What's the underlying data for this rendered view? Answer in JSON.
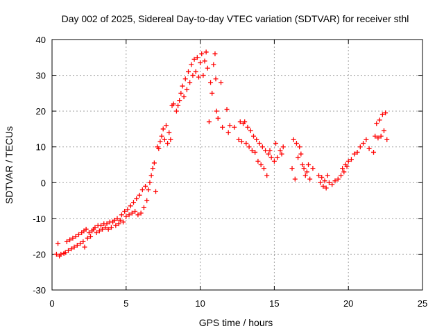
{
  "chart_data": {
    "type": "scatter",
    "title": "Day 002 of 2025, Sidereal Day-to-day VTEC variation (SDTVAR) for receiver sthl",
    "xlabel": "GPS time / hours",
    "ylabel": "SDTVAR / TECUs",
    "xlim": [
      0,
      25
    ],
    "ylim": [
      -30,
      40
    ],
    "xticks": [
      0,
      5,
      10,
      15,
      20,
      25
    ],
    "yticks": [
      -30,
      -20,
      -10,
      0,
      10,
      20,
      30,
      40
    ],
    "grid": true,
    "marker": "+",
    "color": "#ff0000",
    "series": [
      {
        "name": "SDTVAR",
        "points": [
          [
            0.3,
            -20
          ],
          [
            0.4,
            -17
          ],
          [
            0.5,
            -20.5
          ],
          [
            0.6,
            -20
          ],
          [
            0.8,
            -19.8
          ],
          [
            0.9,
            -19.5
          ],
          [
            1.0,
            -16.5
          ],
          [
            1.1,
            -19
          ],
          [
            1.2,
            -16
          ],
          [
            1.3,
            -18.5
          ],
          [
            1.4,
            -15.5
          ],
          [
            1.5,
            -18
          ],
          [
            1.6,
            -15
          ],
          [
            1.7,
            -17.5
          ],
          [
            1.8,
            -14.5
          ],
          [
            1.9,
            -17
          ],
          [
            2.0,
            -14
          ],
          [
            2.1,
            -16.5
          ],
          [
            2.15,
            -13.5
          ],
          [
            2.2,
            -18
          ],
          [
            2.3,
            -13
          ],
          [
            2.4,
            -15.5
          ],
          [
            2.5,
            -14
          ],
          [
            2.6,
            -15
          ],
          [
            2.7,
            -13.5
          ],
          [
            2.8,
            -13
          ],
          [
            2.9,
            -12.5
          ],
          [
            3.0,
            -14
          ],
          [
            3.1,
            -12
          ],
          [
            3.2,
            -13.5
          ],
          [
            3.3,
            -12
          ],
          [
            3.4,
            -13
          ],
          [
            3.5,
            -11.5
          ],
          [
            3.6,
            -12.5
          ],
          [
            3.7,
            -11.5
          ],
          [
            3.8,
            -13
          ],
          [
            3.9,
            -11
          ],
          [
            4.0,
            -12.5
          ],
          [
            4.1,
            -11
          ],
          [
            4.2,
            -10.5
          ],
          [
            4.3,
            -12
          ],
          [
            4.4,
            -10
          ],
          [
            4.5,
            -11.5
          ],
          [
            4.6,
            -10.5
          ],
          [
            4.7,
            -9
          ],
          [
            4.8,
            -11
          ],
          [
            4.9,
            -8
          ],
          [
            5.0,
            -9.5
          ],
          [
            5.1,
            -7.5
          ],
          [
            5.2,
            -9
          ],
          [
            5.3,
            -6.5
          ],
          [
            5.4,
            -8.5
          ],
          [
            5.5,
            -5.5
          ],
          [
            5.6,
            -8
          ],
          [
            5.7,
            -4.5
          ],
          [
            5.8,
            -9
          ],
          [
            5.9,
            -3.5
          ],
          [
            6.0,
            -8.5
          ],
          [
            6.1,
            -2
          ],
          [
            6.2,
            -7
          ],
          [
            6.3,
            -1
          ],
          [
            6.4,
            -5
          ],
          [
            6.5,
            -2
          ],
          [
            6.6,
            0
          ],
          [
            6.7,
            2
          ],
          [
            6.8,
            4
          ],
          [
            6.9,
            5.5
          ],
          [
            7.0,
            -2.5
          ],
          [
            7.1,
            10
          ],
          [
            7.2,
            9.5
          ],
          [
            7.3,
            11.5
          ],
          [
            7.4,
            13
          ],
          [
            7.5,
            15
          ],
          [
            7.6,
            12
          ],
          [
            7.7,
            16
          ],
          [
            7.8,
            11
          ],
          [
            7.9,
            14
          ],
          [
            8.0,
            12
          ],
          [
            8.1,
            21.5
          ],
          [
            8.2,
            22
          ],
          [
            8.4,
            20
          ],
          [
            8.5,
            21.5
          ],
          [
            8.6,
            23
          ],
          [
            8.7,
            25
          ],
          [
            8.8,
            27
          ],
          [
            8.9,
            24
          ],
          [
            9.0,
            29
          ],
          [
            9.1,
            26
          ],
          [
            9.2,
            31
          ],
          [
            9.3,
            28
          ],
          [
            9.4,
            33
          ],
          [
            9.5,
            30
          ],
          [
            9.6,
            34.5
          ],
          [
            9.7,
            31
          ],
          [
            9.8,
            35
          ],
          [
            9.9,
            29.5
          ],
          [
            10.0,
            33.5
          ],
          [
            10.1,
            36
          ],
          [
            10.2,
            30
          ],
          [
            10.3,
            34
          ],
          [
            10.4,
            36.5
          ],
          [
            10.5,
            32
          ],
          [
            10.6,
            17
          ],
          [
            10.7,
            28
          ],
          [
            10.8,
            25
          ],
          [
            10.9,
            33
          ],
          [
            11.0,
            36
          ],
          [
            11.05,
            29
          ],
          [
            11.1,
            20
          ],
          [
            11.2,
            18
          ],
          [
            11.4,
            28
          ],
          [
            11.5,
            15.5
          ],
          [
            11.8,
            20.5
          ],
          [
            11.9,
            14
          ],
          [
            12.0,
            16
          ],
          [
            12.3,
            15.5
          ],
          [
            12.6,
            12
          ],
          [
            12.7,
            17
          ],
          [
            12.8,
            11.5
          ],
          [
            12.9,
            16.5
          ],
          [
            13.0,
            17
          ],
          [
            13.1,
            11
          ],
          [
            13.2,
            15.5
          ],
          [
            13.3,
            10
          ],
          [
            13.4,
            14.5
          ],
          [
            13.5,
            9
          ],
          [
            13.6,
            13
          ],
          [
            13.7,
            8.5
          ],
          [
            13.8,
            12
          ],
          [
            13.9,
            6
          ],
          [
            14.0,
            11
          ],
          [
            14.1,
            5
          ],
          [
            14.2,
            10
          ],
          [
            14.3,
            4
          ],
          [
            14.4,
            9
          ],
          [
            14.5,
            2
          ],
          [
            14.6,
            8
          ],
          [
            14.7,
            9
          ],
          [
            14.8,
            7
          ],
          [
            15.0,
            6
          ],
          [
            15.1,
            11
          ],
          [
            15.2,
            7
          ],
          [
            15.4,
            9
          ],
          [
            15.5,
            8
          ],
          [
            15.6,
            10
          ],
          [
            16.2,
            4
          ],
          [
            16.3,
            12
          ],
          [
            16.4,
            1
          ],
          [
            16.5,
            11
          ],
          [
            16.6,
            7
          ],
          [
            16.7,
            10
          ],
          [
            16.8,
            8
          ],
          [
            16.9,
            5
          ],
          [
            17.0,
            4
          ],
          [
            17.1,
            2
          ],
          [
            17.2,
            3
          ],
          [
            17.3,
            5
          ],
          [
            17.4,
            1
          ],
          [
            17.6,
            4
          ],
          [
            18.0,
            2
          ],
          [
            18.1,
            0
          ],
          [
            18.2,
            1.5
          ],
          [
            18.3,
            -1
          ],
          [
            18.4,
            0.5
          ],
          [
            18.5,
            -1.5
          ],
          [
            18.6,
            2
          ],
          [
            18.7,
            0
          ],
          [
            18.9,
            -0.5
          ],
          [
            19.1,
            0.5
          ],
          [
            19.3,
            1
          ],
          [
            19.5,
            2
          ],
          [
            19.6,
            4
          ],
          [
            19.7,
            3
          ],
          [
            19.8,
            5
          ],
          [
            19.9,
            4.5
          ],
          [
            20.0,
            6
          ],
          [
            20.2,
            6.5
          ],
          [
            20.4,
            8
          ],
          [
            20.6,
            8.5
          ],
          [
            20.8,
            10
          ],
          [
            21.0,
            11
          ],
          [
            21.2,
            12
          ],
          [
            21.4,
            9.5
          ],
          [
            21.7,
            8.5
          ],
          [
            21.8,
            13
          ],
          [
            21.9,
            16.5
          ],
          [
            22.0,
            12.5
          ],
          [
            22.1,
            17.5
          ],
          [
            22.2,
            13
          ],
          [
            22.3,
            19
          ],
          [
            22.4,
            14.5
          ],
          [
            22.5,
            19.5
          ],
          [
            22.6,
            12
          ]
        ]
      }
    ]
  }
}
